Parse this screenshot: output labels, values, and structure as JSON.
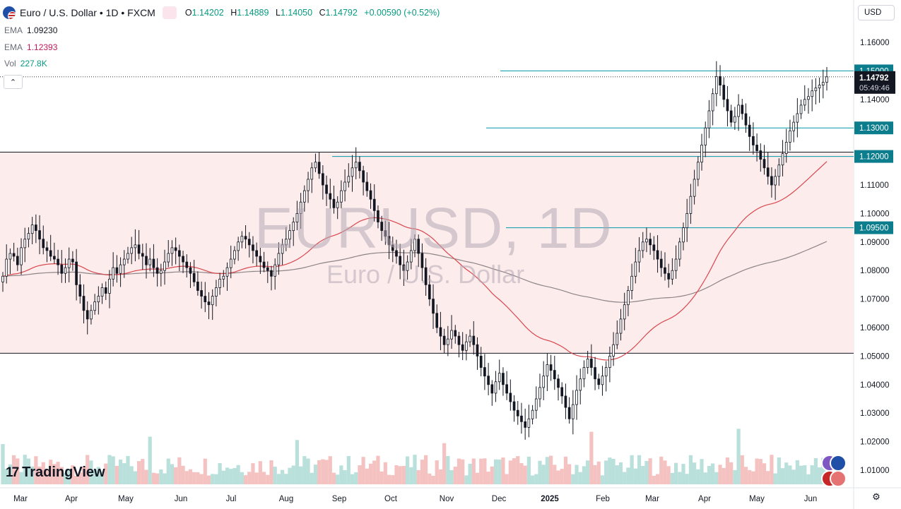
{
  "header": {
    "symbol": "Euro / U.S. Dollar • 1D • FXCM",
    "badge_icon": "≈",
    "ohlc": {
      "o_key": "O",
      "o": "1.14202",
      "h_key": "H",
      "h": "1.14889",
      "l_key": "L",
      "l": "1.14050",
      "c_key": "C",
      "c": "1.14792",
      "change": "+0.00590 (+0.52%)"
    }
  },
  "indicators": [
    {
      "name": "EMA",
      "value": "1.09230",
      "color": "#6a6d78"
    },
    {
      "name": "EMA",
      "value": "1.12393",
      "color": "#c2185b"
    },
    {
      "name": "Vol",
      "value": "227.8K",
      "color": "#089981"
    }
  ],
  "collapse_label": "⌃",
  "currency": "USD",
  "watermark": {
    "symbol": "EURUSD, 1D",
    "name": "Euro / U.S. Dollar"
  },
  "brand": {
    "mark": "17",
    "name": "TradingView"
  },
  "settings_icon": "⚙",
  "colors": {
    "up": "#131722",
    "down": "#131722",
    "ema_fast": "#d9474f",
    "ema_slow": "#8c8486",
    "hline": "#0097a7",
    "range_fill": "#fdecec",
    "vol_up": "#a8d8d2",
    "vol_down": "#f2b3b3"
  },
  "chart_data": {
    "type": "candlestick",
    "ylim": [
      1.0,
      1.165
    ],
    "y_ticks": [
      "1.16000",
      "1.15000",
      "1.14000",
      "1.13000",
      "1.12000",
      "1.11000",
      "1.10000",
      "1.09000",
      "1.08000",
      "1.07000",
      "1.06000",
      "1.05000",
      "1.04000",
      "1.03000",
      "1.02000",
      "1.01000"
    ],
    "x_ticks": [
      "Mar",
      "Apr",
      "May",
      "Jun",
      "Jul",
      "Aug",
      "Sep",
      "Oct",
      "Nov",
      "Dec",
      "2025",
      "Feb",
      "Mar",
      "Apr",
      "May",
      "Jun"
    ],
    "last_price": {
      "value": 1.14792,
      "label": "1.14792",
      "countdown": "05:49:46"
    },
    "level_labels": [
      "1.15000",
      "1.13000",
      "1.12000",
      "1.09500"
    ],
    "levels": [
      1.15,
      1.13,
      1.12,
      1.095
    ],
    "range_box": {
      "top": 1.1215,
      "bottom": 1.051
    },
    "close_series": [
      1.078,
      1.084,
      1.086,
      1.085,
      1.082,
      1.088,
      1.091,
      1.093,
      1.096,
      1.094,
      1.091,
      1.088,
      1.087,
      1.085,
      1.084,
      1.082,
      1.079,
      1.081,
      1.084,
      1.083,
      1.075,
      1.071,
      1.066,
      1.063,
      1.066,
      1.069,
      1.071,
      1.074,
      1.072,
      1.077,
      1.081,
      1.079,
      1.082,
      1.084,
      1.086,
      1.088,
      1.089,
      1.086,
      1.085,
      1.082,
      1.084,
      1.081,
      1.079,
      1.08,
      1.083,
      1.086,
      1.088,
      1.087,
      1.085,
      1.083,
      1.081,
      1.079,
      1.076,
      1.073,
      1.071,
      1.069,
      1.068,
      1.071,
      1.074,
      1.077,
      1.078,
      1.081,
      1.084,
      1.087,
      1.09,
      1.092,
      1.091,
      1.089,
      1.087,
      1.085,
      1.083,
      1.081,
      1.08,
      1.078,
      1.082,
      1.086,
      1.089,
      1.091,
      1.094,
      1.097,
      1.1,
      1.104,
      1.108,
      1.112,
      1.116,
      1.118,
      1.114,
      1.11,
      1.107,
      1.105,
      1.102,
      1.104,
      1.108,
      1.111,
      1.113,
      1.116,
      1.118,
      1.115,
      1.111,
      1.108,
      1.105,
      1.101,
      1.097,
      1.094,
      1.092,
      1.089,
      1.087,
      1.085,
      1.082,
      1.08,
      1.083,
      1.087,
      1.091,
      1.086,
      1.081,
      1.075,
      1.07,
      1.065,
      1.06,
      1.057,
      1.054,
      1.056,
      1.059,
      1.057,
      1.054,
      1.052,
      1.055,
      1.057,
      1.054,
      1.05,
      1.046,
      1.043,
      1.04,
      1.037,
      1.041,
      1.044,
      1.04,
      1.037,
      1.034,
      1.031,
      1.029,
      1.027,
      1.025,
      1.028,
      1.031,
      1.035,
      1.039,
      1.043,
      1.047,
      1.045,
      1.042,
      1.039,
      1.036,
      1.032,
      1.028,
      1.033,
      1.038,
      1.042,
      1.046,
      1.049,
      1.046,
      1.042,
      1.04,
      1.043,
      1.046,
      1.05,
      1.054,
      1.058,
      1.063,
      1.068,
      1.073,
      1.078,
      1.083,
      1.087,
      1.09,
      1.091,
      1.089,
      1.087,
      1.084,
      1.081,
      1.079,
      1.077,
      1.08,
      1.084,
      1.09,
      1.095,
      1.1,
      1.106,
      1.112,
      1.118,
      1.124,
      1.13,
      1.136,
      1.142,
      1.148,
      1.145,
      1.14,
      1.136,
      1.132,
      1.134,
      1.138,
      1.135,
      1.131,
      1.127,
      1.124,
      1.122,
      1.119,
      1.116,
      1.113,
      1.11,
      1.113,
      1.117,
      1.121,
      1.125,
      1.129,
      1.132,
      1.135,
      1.138,
      1.14,
      1.141,
      1.143,
      1.144,
      1.145,
      1.146,
      1.14792
    ]
  }
}
